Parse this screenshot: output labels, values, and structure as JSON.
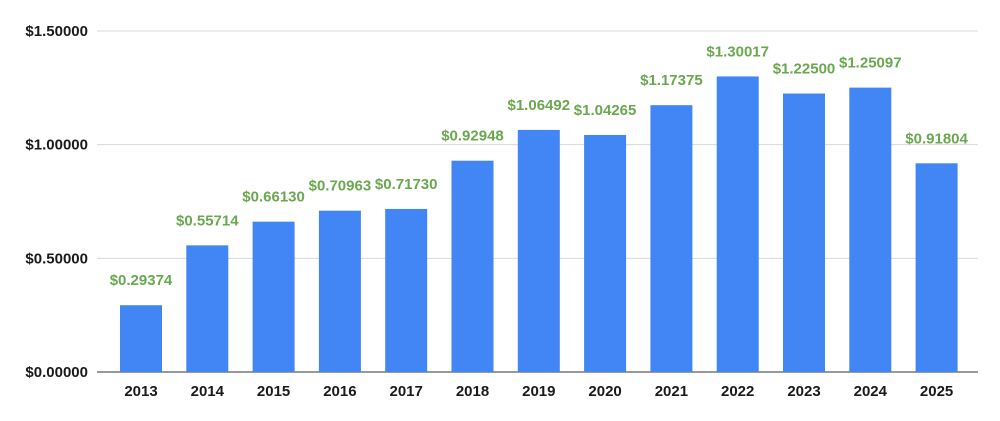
{
  "chart_data": {
    "type": "bar",
    "categories": [
      "2013",
      "2014",
      "2015",
      "2016",
      "2017",
      "2018",
      "2019",
      "2020",
      "2021",
      "2022",
      "2023",
      "2024",
      "2025"
    ],
    "values": [
      0.29374,
      0.55714,
      0.6613,
      0.70963,
      0.7173,
      0.92948,
      1.06492,
      1.04265,
      1.17375,
      1.30017,
      1.225,
      1.25097,
      0.91804
    ],
    "data_labels": [
      "$0.29374",
      "$0.55714",
      "$0.66130",
      "$0.70963",
      "$0.71730",
      "$0.92948",
      "$1.06492",
      "$1.04265",
      "$1.17375",
      "$1.30017",
      "$1.22500",
      "$1.25097",
      "$0.91804"
    ],
    "y_ticks": [
      0,
      0.5,
      1.0,
      1.5
    ],
    "y_tick_labels": [
      "$0.00000",
      "$0.50000",
      "$1.00000",
      "$1.50000"
    ],
    "ylim": [
      0,
      1.5
    ],
    "grid": true,
    "title": "",
    "xlabel": "",
    "ylabel": "",
    "colors": {
      "bar": "#4285f4",
      "data_label": "#6aa84f"
    }
  }
}
